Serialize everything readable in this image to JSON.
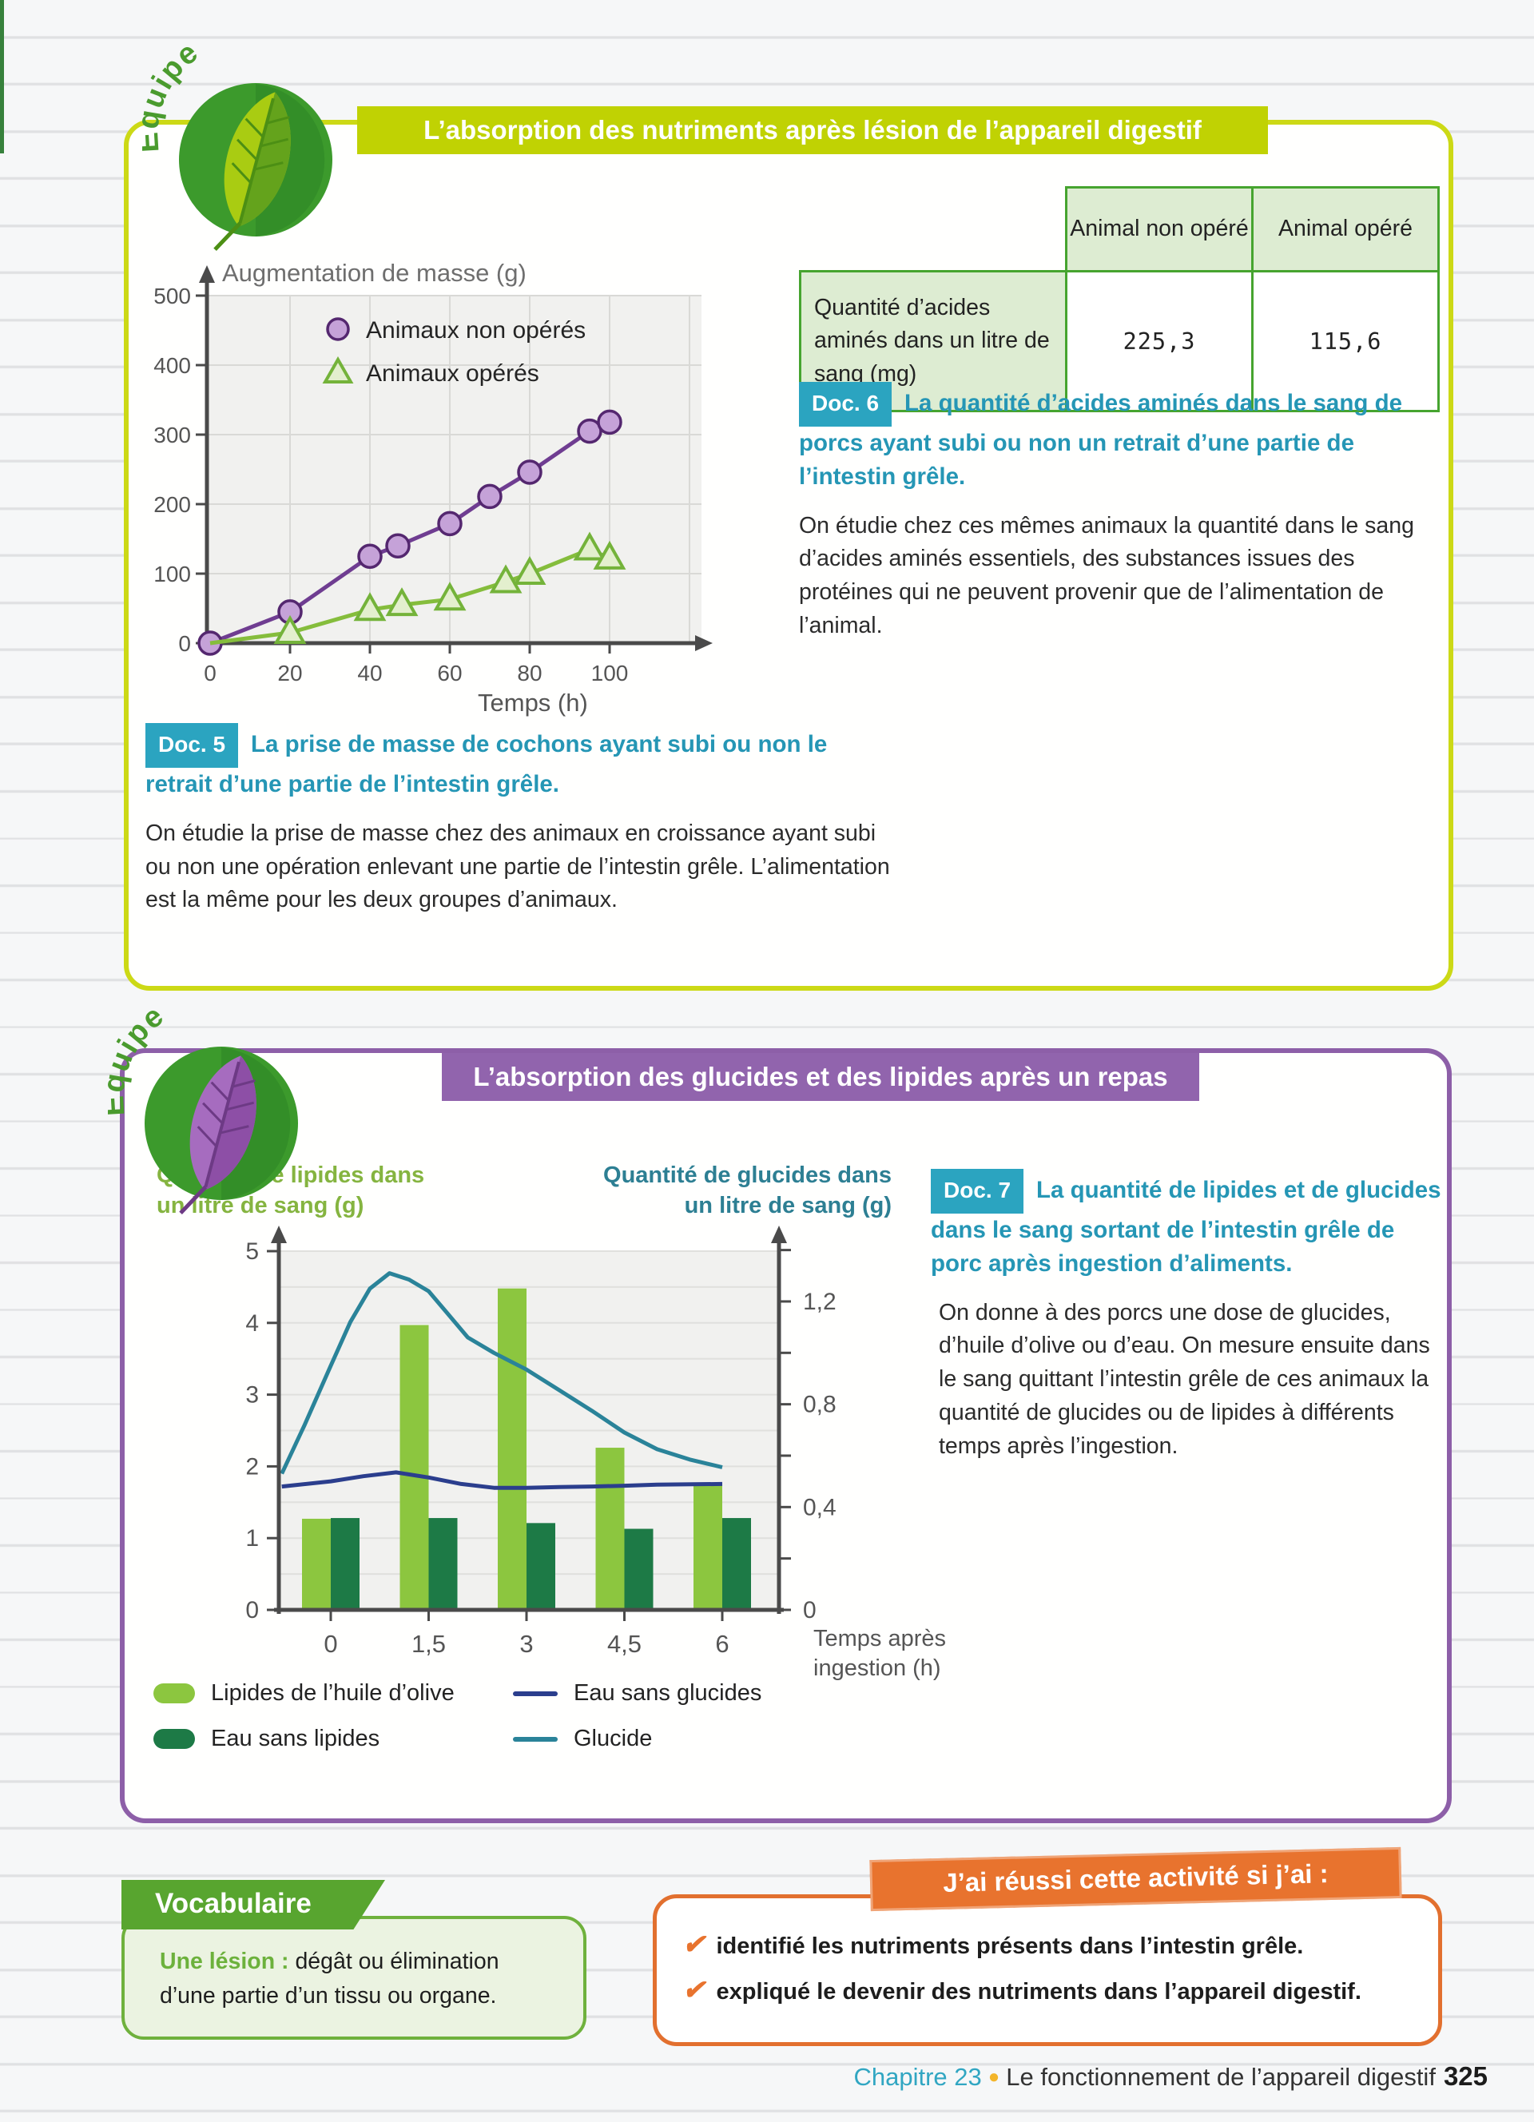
{
  "page": {
    "footer": {
      "chapter": "Chapitre 23",
      "bullet": "●",
      "title": "Le fonctionnement de l’appareil digestif",
      "page_number": "325"
    }
  },
  "section1": {
    "badge": "Équipe",
    "accent_color": "#c0d203",
    "title": "L’absorption des nutriments après lésion de l’appareil digestif",
    "table": {
      "col_headers": [
        "Animal non opéré",
        "Animal opéré"
      ],
      "row_label": "Quantité d’acides aminés dans un litre de sang (mg)",
      "values": [
        "225,3",
        "115,6"
      ]
    },
    "doc6": {
      "badge": "Doc. 6",
      "caption": "La quantité d’acides aminés dans le sang de porcs ayant subi ou non un retrait d’une partie de l’intestin grêle.",
      "body": "On étudie chez ces mêmes animaux la quantité dans le sang d’acides aminés essentiels, des substances issues des protéines qui ne peuvent provenir que de l’alimentation de l’animal."
    },
    "doc5": {
      "badge": "Doc. 5",
      "caption": "La prise de masse de cochons ayant subi ou non le retrait d’une partie de l’intestin grêle.",
      "body": "On étudie la prise de masse chez des animaux en croissance ayant subi ou non une opération enlevant une partie de l’intestin grêle. L’alimentation est la même pour les deux groupes d’animaux."
    }
  },
  "section2": {
    "badge": "Équipe",
    "accent_color": "#9164ad",
    "title": "L’absorption des glucides et des lipides après un repas",
    "doc7": {
      "badge": "Doc. 7",
      "caption": "La quantité de lipides et de glucides dans le sang sortant de l’intestin grêle de porc après ingestion d’aliments.",
      "body": "On donne à des porcs une dose de glucides, d’huile d’olive ou d’eau. On mesure ensuite dans le sang quittant l’intestin grêle de ces animaux la quantité de glucides ou de lipides à différents temps après l’ingestion."
    }
  },
  "vocab": {
    "title": "Vocabulaire",
    "term": "Une lésion :",
    "definition": " dégât ou élimination d’une partie d’un tissu ou organe."
  },
  "success": {
    "banner": "J’ai réussi cette activité si j’ai :",
    "check": "✔",
    "items": [
      "identifié les nutriments présents dans l’intestin grêle.",
      "expliqué le devenir des nutriments dans l’appareil digestif."
    ]
  },
  "chart_data": [
    {
      "type": "line",
      "title": "Augmentation de masse (g)",
      "xlabel": "Temps (h)",
      "xlim": [
        0,
        100
      ],
      "ylim": [
        0,
        500
      ],
      "xticks": [
        0,
        20,
        40,
        60,
        80,
        100
      ],
      "yticks": [
        0,
        100,
        200,
        300,
        400,
        500
      ],
      "grid": true,
      "legend_position": "top-left-inside",
      "series": [
        {
          "name": "Animaux non opérés",
          "marker": "circle",
          "color": "#6f3d91",
          "fill": "#c5a2d8",
          "edge": "#54276f",
          "points": [
            [
              0,
              0
            ],
            [
              20,
              45
            ],
            [
              40,
              125
            ],
            [
              47,
              140
            ],
            [
              60,
              172
            ],
            [
              70,
              211
            ],
            [
              80,
              246
            ],
            [
              95,
              305
            ],
            [
              100,
              318
            ]
          ]
        },
        {
          "name": "Animaux opérés",
          "marker": "triangle",
          "color": "#85bd3c",
          "fill": "#e3efce",
          "edge": "#74b33a",
          "line_start": [
            0,
            0
          ],
          "points": [
            [
              20,
              15
            ],
            [
              40,
              48
            ],
            [
              48,
              55
            ],
            [
              60,
              63
            ],
            [
              74,
              88
            ],
            [
              80,
              100
            ],
            [
              95,
              135
            ],
            [
              100,
              122
            ]
          ]
        }
      ]
    },
    {
      "type": "dual",
      "left_axis": {
        "title_lines": [
          "Quantité de lipides dans",
          "un litre de sang (g)"
        ],
        "color": "#85b440",
        "ticks": [
          0,
          1,
          2,
          3,
          4,
          5
        ],
        "max": 5
      },
      "right_axis": {
        "title_lines": [
          "Quantité de glucides dans",
          "un litre de sang (g)"
        ],
        "color": "#2d7f93",
        "labeled_ticks": [
          [
            0,
            "0"
          ],
          [
            0.4,
            "0,4"
          ],
          [
            0.8,
            "0,8"
          ],
          [
            1.2,
            "1,2"
          ]
        ],
        "minor_step": 0.2,
        "max": 1.4
      },
      "xlabel_lines": [
        "Temps après",
        "ingestion (h)"
      ],
      "categories": [
        "0",
        "1,5",
        "3",
        "4,5",
        "6"
      ],
      "category_hours": [
        0,
        1.5,
        3,
        4.5,
        6
      ],
      "grid": true,
      "bar_series": [
        {
          "name": "Lipides de l’huile d’olive",
          "color": "#8cc63f",
          "axis": "left",
          "values": [
            1.27,
            3.97,
            4.48,
            2.26,
            1.77
          ]
        },
        {
          "name": "Eau sans lipides",
          "color": "#1d7a46",
          "axis": "left",
          "values": [
            1.28,
            1.28,
            1.21,
            1.13,
            1.28
          ]
        }
      ],
      "line_series": [
        {
          "name": "Eau sans glucides",
          "color": "#2b3e8d",
          "axis": "right",
          "points": [
            [
              -0.75,
              0.48
            ],
            [
              0,
              0.5
            ],
            [
              0.5,
              0.52
            ],
            [
              1,
              0.535
            ],
            [
              1.5,
              0.515
            ],
            [
              2,
              0.49
            ],
            [
              2.5,
              0.475
            ],
            [
              3,
              0.475
            ],
            [
              3.5,
              0.478
            ],
            [
              4,
              0.48
            ],
            [
              4.5,
              0.483
            ],
            [
              5,
              0.487
            ],
            [
              6,
              0.49
            ]
          ]
        },
        {
          "name": "Glucide",
          "color": "#2a8399",
          "axis": "right",
          "points": [
            [
              -0.75,
              0.53
            ],
            [
              -0.4,
              0.72
            ],
            [
              0,
              0.95
            ],
            [
              0.3,
              1.12
            ],
            [
              0.6,
              1.25
            ],
            [
              0.9,
              1.31
            ],
            [
              1.2,
              1.285
            ],
            [
              1.5,
              1.24
            ],
            [
              1.8,
              1.15
            ],
            [
              2.1,
              1.06
            ],
            [
              2.5,
              1.0
            ],
            [
              3,
              0.935
            ],
            [
              3.5,
              0.855
            ],
            [
              4,
              0.775
            ],
            [
              4.5,
              0.69
            ],
            [
              5,
              0.625
            ],
            [
              5.5,
              0.585
            ],
            [
              6,
              0.555
            ]
          ]
        }
      ]
    }
  ]
}
